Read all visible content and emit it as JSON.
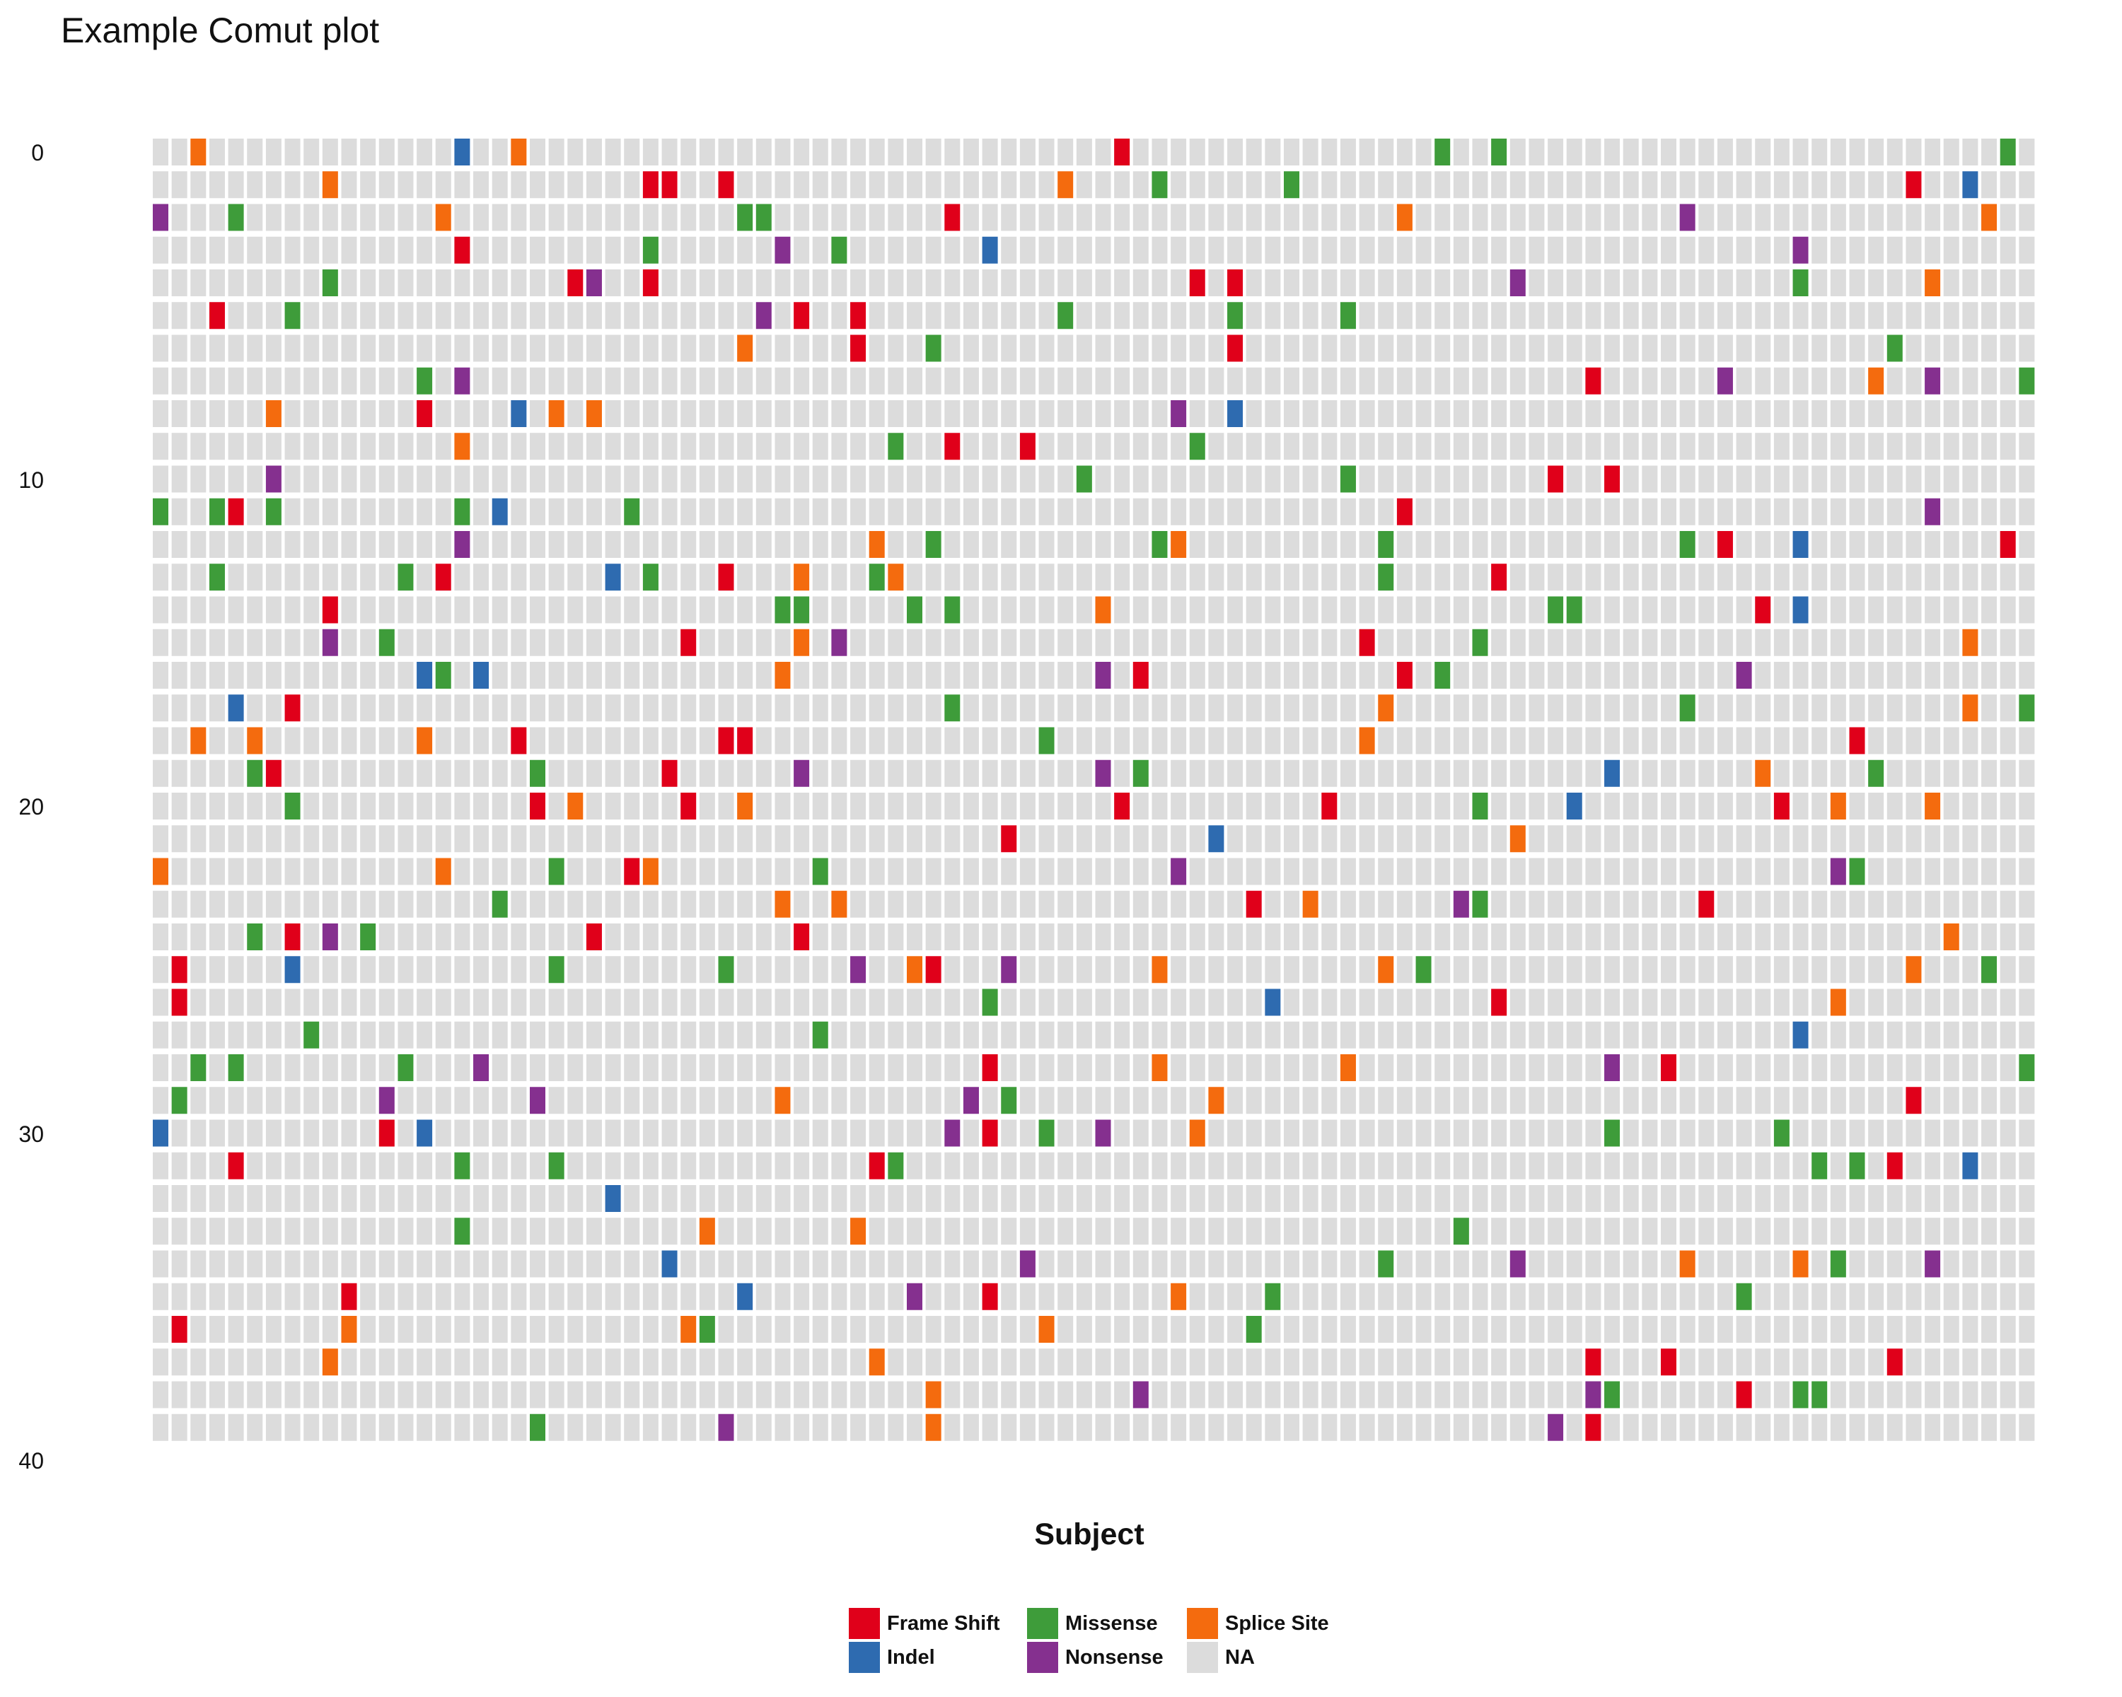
{
  "chart_data": {
    "type": "heatmap",
    "title": "Example Comut plot",
    "xlabel": "Subject",
    "ylabel": "",
    "y_ticks": [
      "0",
      "10",
      "20",
      "30",
      "40"
    ],
    "n_subjects": 100,
    "n_genes": 40,
    "colors": {
      "Frame Shift": "#e0001a",
      "Indel": "#2e6bb0",
      "Missense": "#3e9c3a",
      "Nonsense": "#85308f",
      "Splice Site": "#f46b0e",
      "NA": "#dcdcdc"
    },
    "legend": {
      "position": "bottom",
      "entries": [
        "Frame Shift",
        "Indel",
        "Missense",
        "Nonsense",
        "Splice Site",
        "NA"
      ]
    },
    "mutations": [
      {
        "y": 40,
        "x": [
          3,
          17,
          20,
          52,
          69,
          72,
          99
        ],
        "type": [
          "Splice Site",
          "Indel",
          "Splice Site",
          "Frame Shift",
          "Missense",
          "Missense",
          "Missense"
        ]
      },
      {
        "y": 39,
        "x": [
          10,
          27,
          28,
          31,
          49,
          54,
          61,
          94,
          97
        ],
        "type": [
          "Splice Site",
          "Frame Shift",
          "Frame Shift",
          "Frame Shift",
          "Splice Site",
          "Missense",
          "Missense",
          "Frame Shift",
          "Indel"
        ]
      },
      {
        "y": 38,
        "x": [
          1,
          5,
          16,
          32,
          33,
          43,
          67,
          82,
          98
        ],
        "type": [
          "Nonsense",
          "Missense",
          "Splice Site",
          "Missense",
          "Missense",
          "Frame Shift",
          "Splice Site",
          "Nonsense",
          "Splice Site"
        ]
      },
      {
        "y": 37,
        "x": [
          17,
          27,
          34,
          37,
          45,
          88
        ],
        "type": [
          "Frame Shift",
          "Missense",
          "Nonsense",
          "Missense",
          "Indel",
          "Nonsense"
        ]
      },
      {
        "y": 36,
        "x": [
          10,
          23,
          24,
          27,
          56,
          58,
          73,
          88,
          95
        ],
        "type": [
          "Missense",
          "Frame Shift",
          "Nonsense",
          "Frame Shift",
          "Frame Shift",
          "Frame Shift",
          "Nonsense",
          "Missense",
          "Splice Site"
        ]
      },
      {
        "y": 35,
        "x": [
          4,
          8,
          33,
          35,
          38,
          49,
          58,
          64
        ],
        "type": [
          "Frame Shift",
          "Missense",
          "Nonsense",
          "Frame Shift",
          "Frame Shift",
          "Missense",
          "Missense",
          "Missense"
        ]
      },
      {
        "y": 34,
        "x": [
          32,
          38,
          42,
          58,
          93
        ],
        "type": [
          "Splice Site",
          "Frame Shift",
          "Missense",
          "Frame Shift",
          "Missense"
        ]
      },
      {
        "y": 33,
        "x": [
          15,
          17,
          77,
          84,
          92,
          95,
          100
        ],
        "type": [
          "Missense",
          "Nonsense",
          "Frame Shift",
          "Nonsense",
          "Splice Site",
          "Nonsense",
          "Missense"
        ]
      },
      {
        "y": 32,
        "x": [
          7,
          15,
          20,
          22,
          24,
          55,
          58
        ],
        "type": [
          "Splice Site",
          "Frame Shift",
          "Indel",
          "Splice Site",
          "Splice Site",
          "Nonsense",
          "Indel"
        ]
      },
      {
        "y": 31,
        "x": [
          17,
          40,
          43,
          47,
          56
        ],
        "type": [
          "Splice Site",
          "Missense",
          "Frame Shift",
          "Frame Shift",
          "Missense"
        ]
      },
      {
        "y": 30,
        "x": [
          7,
          50,
          64,
          75,
          78
        ],
        "type": [
          "Nonsense",
          "Missense",
          "Missense",
          "Frame Shift",
          "Frame Shift"
        ]
      },
      {
        "y": 29,
        "x": [
          1,
          4,
          5,
          7,
          17,
          19,
          26,
          67,
          95
        ],
        "type": [
          "Missense",
          "Missense",
          "Frame Shift",
          "Missense",
          "Missense",
          "Indel",
          "Missense",
          "Frame Shift",
          "Nonsense"
        ]
      },
      {
        "y": 28,
        "x": [
          17,
          39,
          42,
          54,
          55,
          66,
          82,
          84,
          88,
          99
        ],
        "type": [
          "Nonsense",
          "Splice Site",
          "Missense",
          "Missense",
          "Splice Site",
          "Missense",
          "Missense",
          "Frame Shift",
          "Indel",
          "Frame Shift"
        ]
      },
      {
        "y": 27,
        "x": [
          4,
          14,
          16,
          25,
          27,
          31,
          35,
          39,
          40,
          66,
          72
        ],
        "type": [
          "Missense",
          "Missense",
          "Frame Shift",
          "Indel",
          "Missense",
          "Frame Shift",
          "Splice Site",
          "Missense",
          "Splice Site",
          "Missense",
          "Frame Shift"
        ]
      },
      {
        "y": 26,
        "x": [
          10,
          34,
          35,
          41,
          43,
          51,
          75,
          76,
          86,
          88
        ],
        "type": [
          "Frame Shift",
          "Missense",
          "Missense",
          "Missense",
          "Missense",
          "Splice Site",
          "Missense",
          "Missense",
          "Frame Shift",
          "Indel"
        ]
      },
      {
        "y": 25,
        "x": [
          10,
          13,
          29,
          35,
          37,
          65,
          71,
          97
        ],
        "type": [
          "Nonsense",
          "Missense",
          "Frame Shift",
          "Splice Site",
          "Nonsense",
          "Frame Shift",
          "Missense",
          "Splice Site"
        ]
      },
      {
        "y": 24,
        "x": [
          15,
          16,
          18,
          34,
          51,
          53,
          67,
          69,
          85
        ],
        "type": [
          "Indel",
          "Missense",
          "Indel",
          "Splice Site",
          "Nonsense",
          "Frame Shift",
          "Frame Shift",
          "Missense",
          "Nonsense"
        ]
      },
      {
        "y": 23,
        "x": [
          5,
          8,
          43,
          66,
          82,
          97,
          100
        ],
        "type": [
          "Indel",
          "Frame Shift",
          "Missense",
          "Splice Site",
          "Missense",
          "Splice Site",
          "Missense"
        ]
      },
      {
        "y": 22,
        "x": [
          3,
          6,
          15,
          20,
          31,
          32,
          48,
          65,
          91
        ],
        "type": [
          "Splice Site",
          "Splice Site",
          "Splice Site",
          "Frame Shift",
          "Frame Shift",
          "Frame Shift",
          "Missense",
          "Splice Site",
          "Frame Shift"
        ]
      },
      {
        "y": 21,
        "x": [
          6,
          7,
          21,
          28,
          35,
          51,
          53,
          78,
          86,
          92
        ],
        "type": [
          "Missense",
          "Frame Shift",
          "Missense",
          "Frame Shift",
          "Nonsense",
          "Nonsense",
          "Missense",
          "Indel",
          "Splice Site",
          "Missense"
        ]
      },
      {
        "y": 20,
        "x": [
          8,
          21,
          23,
          29,
          32,
          52,
          63,
          71,
          76,
          87,
          90,
          95
        ],
        "type": [
          "Missense",
          "Frame Shift",
          "Splice Site",
          "Frame Shift",
          "Splice Site",
          "Frame Shift",
          "Frame Shift",
          "Missense",
          "Indel",
          "Frame Shift",
          "Splice Site",
          "Splice Site"
        ]
      },
      {
        "y": 19,
        "x": [
          46,
          57,
          73
        ],
        "type": [
          "Frame Shift",
          "Indel",
          "Splice Site"
        ]
      },
      {
        "y": 18,
        "x": [
          1,
          16,
          22,
          26,
          27,
          36,
          55,
          90,
          91
        ],
        "type": [
          "Splice Site",
          "Splice Site",
          "Missense",
          "Frame Shift",
          "Splice Site",
          "Missense",
          "Nonsense",
          "Nonsense",
          "Missense"
        ]
      },
      {
        "y": 17,
        "x": [
          19,
          34,
          37,
          59,
          62,
          70,
          71,
          83
        ],
        "type": [
          "Missense",
          "Splice Site",
          "Splice Site",
          "Frame Shift",
          "Splice Site",
          "Nonsense",
          "Missense",
          "Frame Shift"
        ]
      },
      {
        "y": 16,
        "x": [
          6,
          8,
          10,
          12,
          24,
          35,
          96
        ],
        "type": [
          "Missense",
          "Frame Shift",
          "Nonsense",
          "Missense",
          "Frame Shift",
          "Frame Shift",
          "Splice Site"
        ]
      },
      {
        "y": 15,
        "x": [
          2,
          8,
          22,
          31,
          38,
          41,
          42,
          46,
          54,
          66,
          68,
          94,
          98
        ],
        "type": [
          "Frame Shift",
          "Indel",
          "Missense",
          "Missense",
          "Nonsense",
          "Splice Site",
          "Frame Shift",
          "Nonsense",
          "Splice Site",
          "Splice Site",
          "Missense",
          "Splice Site",
          "Missense"
        ]
      },
      {
        "y": 14,
        "x": [
          2,
          45,
          60,
          72,
          90
        ],
        "type": [
          "Frame Shift",
          "Missense",
          "Indel",
          "Frame Shift",
          "Splice Site"
        ]
      },
      {
        "y": 13,
        "x": [
          9,
          36,
          88
        ],
        "type": [
          "Missense",
          "Missense",
          "Indel"
        ]
      },
      {
        "y": 12,
        "x": [
          3,
          5,
          14,
          18,
          45,
          54,
          64,
          78,
          81,
          100
        ],
        "type": [
          "Missense",
          "Missense",
          "Missense",
          "Nonsense",
          "Frame Shift",
          "Splice Site",
          "Splice Site",
          "Nonsense",
          "Frame Shift",
          "Missense"
        ]
      },
      {
        "y": 11,
        "x": [
          2,
          13,
          21,
          34,
          44,
          46,
          57,
          94
        ],
        "type": [
          "Missense",
          "Nonsense",
          "Nonsense",
          "Splice Site",
          "Nonsense",
          "Missense",
          "Splice Site",
          "Frame Shift"
        ]
      },
      {
        "y": 10,
        "x": [
          1,
          13,
          15,
          43,
          45,
          48,
          51,
          56,
          78,
          87
        ],
        "type": [
          "Indel",
          "Frame Shift",
          "Indel",
          "Nonsense",
          "Frame Shift",
          "Missense",
          "Nonsense",
          "Splice Site",
          "Missense",
          "Missense"
        ]
      },
      {
        "y": 9,
        "x": [
          5,
          17,
          22,
          39,
          40,
          89,
          91,
          93,
          97
        ],
        "type": [
          "Frame Shift",
          "Missense",
          "Missense",
          "Frame Shift",
          "Missense",
          "Missense",
          "Missense",
          "Frame Shift",
          "Indel"
        ]
      },
      {
        "y": 8,
        "x": [
          25
        ],
        "type": [
          "Indel"
        ]
      },
      {
        "y": 7,
        "x": [
          17,
          30,
          38,
          70
        ],
        "type": [
          "Missense",
          "Splice Site",
          "Splice Site",
          "Missense"
        ]
      },
      {
        "y": 6,
        "x": [
          28,
          47,
          66,
          73,
          82,
          88,
          90,
          95
        ],
        "type": [
          "Indel",
          "Nonsense",
          "Missense",
          "Nonsense",
          "Splice Site",
          "Splice Site",
          "Missense",
          "Nonsense"
        ]
      },
      {
        "y": 5,
        "x": [
          11,
          32,
          41,
          45,
          55,
          60,
          85
        ],
        "type": [
          "Frame Shift",
          "Indel",
          "Nonsense",
          "Frame Shift",
          "Splice Site",
          "Missense",
          "Missense"
        ]
      },
      {
        "y": 4,
        "x": [
          2,
          11,
          29,
          30,
          48,
          59
        ],
        "type": [
          "Frame Shift",
          "Splice Site",
          "Splice Site",
          "Missense",
          "Splice Site",
          "Missense"
        ]
      },
      {
        "y": 3,
        "x": [
          10,
          39,
          77,
          81,
          93
        ],
        "type": [
          "Splice Site",
          "Splice Site",
          "Frame Shift",
          "Frame Shift",
          "Frame Shift"
        ]
      },
      {
        "y": 2,
        "x": [
          42,
          53,
          77,
          78,
          85,
          88,
          89
        ],
        "type": [
          "Splice Site",
          "Nonsense",
          "Nonsense",
          "Missense",
          "Frame Shift",
          "Missense",
          "Missense"
        ]
      },
      {
        "y": 1,
        "x": [
          21,
          31,
          42,
          75,
          77
        ],
        "type": [
          "Missense",
          "Nonsense",
          "Splice Site",
          "Nonsense",
          "Frame Shift"
        ]
      }
    ]
  }
}
